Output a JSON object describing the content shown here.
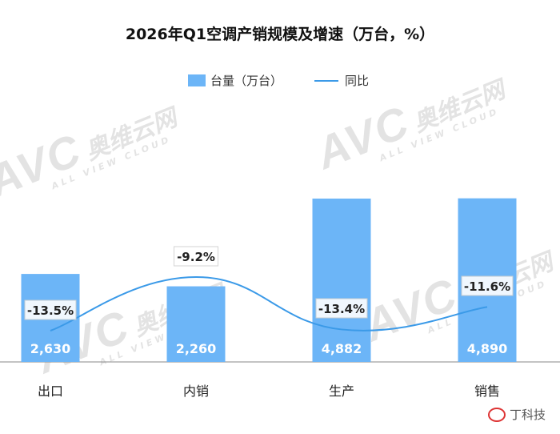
{
  "chart_data": {
    "type": "bar",
    "title": "2026年Q1空调产销规模及增速（万台，%）",
    "categories": [
      "出口",
      "内销",
      "生产",
      "销售"
    ],
    "series": [
      {
        "name": "台量（万台）",
        "type": "bar",
        "values": [
          2630,
          2260,
          4882,
          4890
        ],
        "labels": [
          "2,630",
          "2,260",
          "4,882",
          "4,890"
        ],
        "color": "#6cb5f7"
      },
      {
        "name": "同比",
        "type": "line",
        "values": [
          -13.5,
          -9.2,
          -13.4,
          -11.6
        ],
        "labels": [
          "-13.5%",
          "-9.2%",
          "-13.4%",
          "-11.6%"
        ],
        "color": "#3b9ae8"
      }
    ],
    "legend": "top",
    "grid": false
  },
  "watermark": {
    "logo": "AVC",
    "cn": "奥维云网",
    "en": "ALL VIEW CLOUD"
  },
  "footer": {
    "source": "丁科技"
  }
}
